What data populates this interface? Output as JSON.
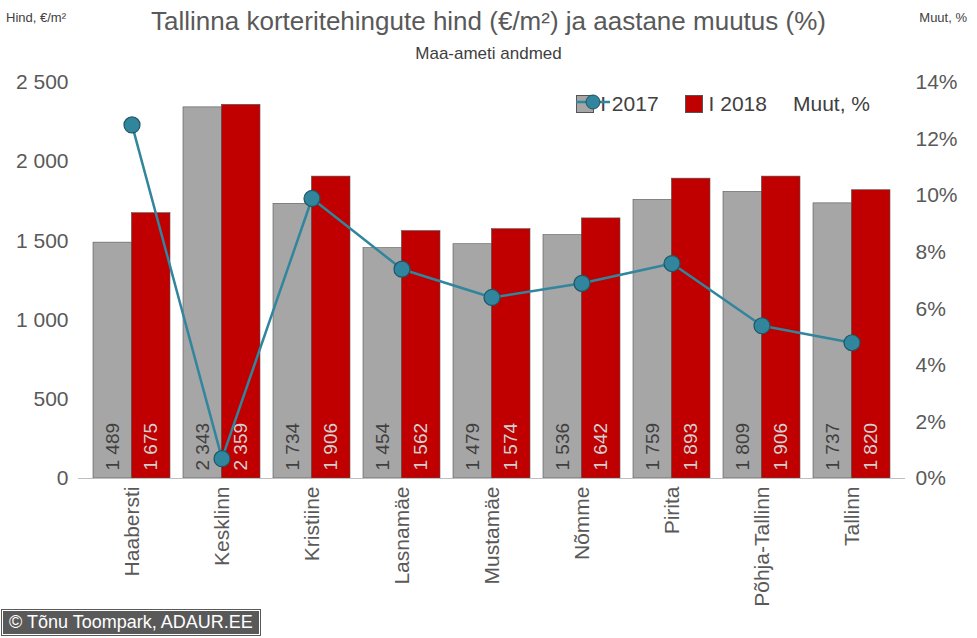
{
  "chart_data": {
    "type": "bar",
    "title": "Tallinna korteritehingute hind (€/m²) ja aastane muutus (%)",
    "subtitle": "Maa-ameti andmed",
    "ylabel": "Hind, €/m²",
    "y2label": "Muut, %",
    "source": "© Tõnu Toompark, ADAUR.EE",
    "categories": [
      "Haabersti",
      "Kesklinn",
      "Kristiine",
      "Lasnamäe",
      "Mustamäe",
      "Nõmme",
      "Pirita",
      "Põhja-Tallinn",
      "Tallinn"
    ],
    "series": [
      {
        "name": "I 2017",
        "type": "bar",
        "color": "#a6a6a6",
        "values": [
          1489,
          2343,
          1734,
          1454,
          1479,
          1536,
          1759,
          1809,
          1737
        ],
        "value_labels": [
          "1 489",
          "2 343",
          "1 734",
          "1 454",
          "1 479",
          "1 536",
          "1 759",
          "1 809",
          "1 737"
        ]
      },
      {
        "name": "I 2018",
        "type": "bar",
        "color": "#c00000",
        "values": [
          1675,
          2359,
          1906,
          1562,
          1574,
          1642,
          1893,
          1906,
          1820
        ],
        "value_labels": [
          "1 675",
          "2 359",
          "1 906",
          "1 562",
          "1 574",
          "1 642",
          "1 893",
          "1 906",
          "1 820"
        ]
      },
      {
        "name": "Muut, %",
        "type": "line",
        "axis": "y2",
        "color": "#31859c",
        "marker": "circle",
        "line_style": "solid",
        "values": [
          12.5,
          0.7,
          9.9,
          7.4,
          6.4,
          6.9,
          7.6,
          5.4,
          4.8
        ]
      }
    ],
    "ylim": [
      0,
      2500
    ],
    "yticks": [
      0,
      500,
      {
        "value": 1000,
        "label": "1 000"
      },
      {
        "value": 1500,
        "label": "1 500"
      },
      {
        "value": 2000,
        "label": "2 000"
      },
      {
        "value": 2500,
        "label": "2 500"
      }
    ],
    "y2lim": [
      0,
      14
    ],
    "y2ticks": [
      {
        "value": 0,
        "label": "0%"
      },
      {
        "value": 2,
        "label": "2%"
      },
      {
        "value": 4,
        "label": "4%"
      },
      {
        "value": 6,
        "label": "6%"
      },
      {
        "value": 8,
        "label": "8%"
      },
      {
        "value": 10,
        "label": "10%"
      },
      {
        "value": 12,
        "label": "12%"
      },
      {
        "value": 14,
        "label": "14%"
      }
    ],
    "grid": false,
    "legend": "top-right",
    "data_labels": true
  }
}
